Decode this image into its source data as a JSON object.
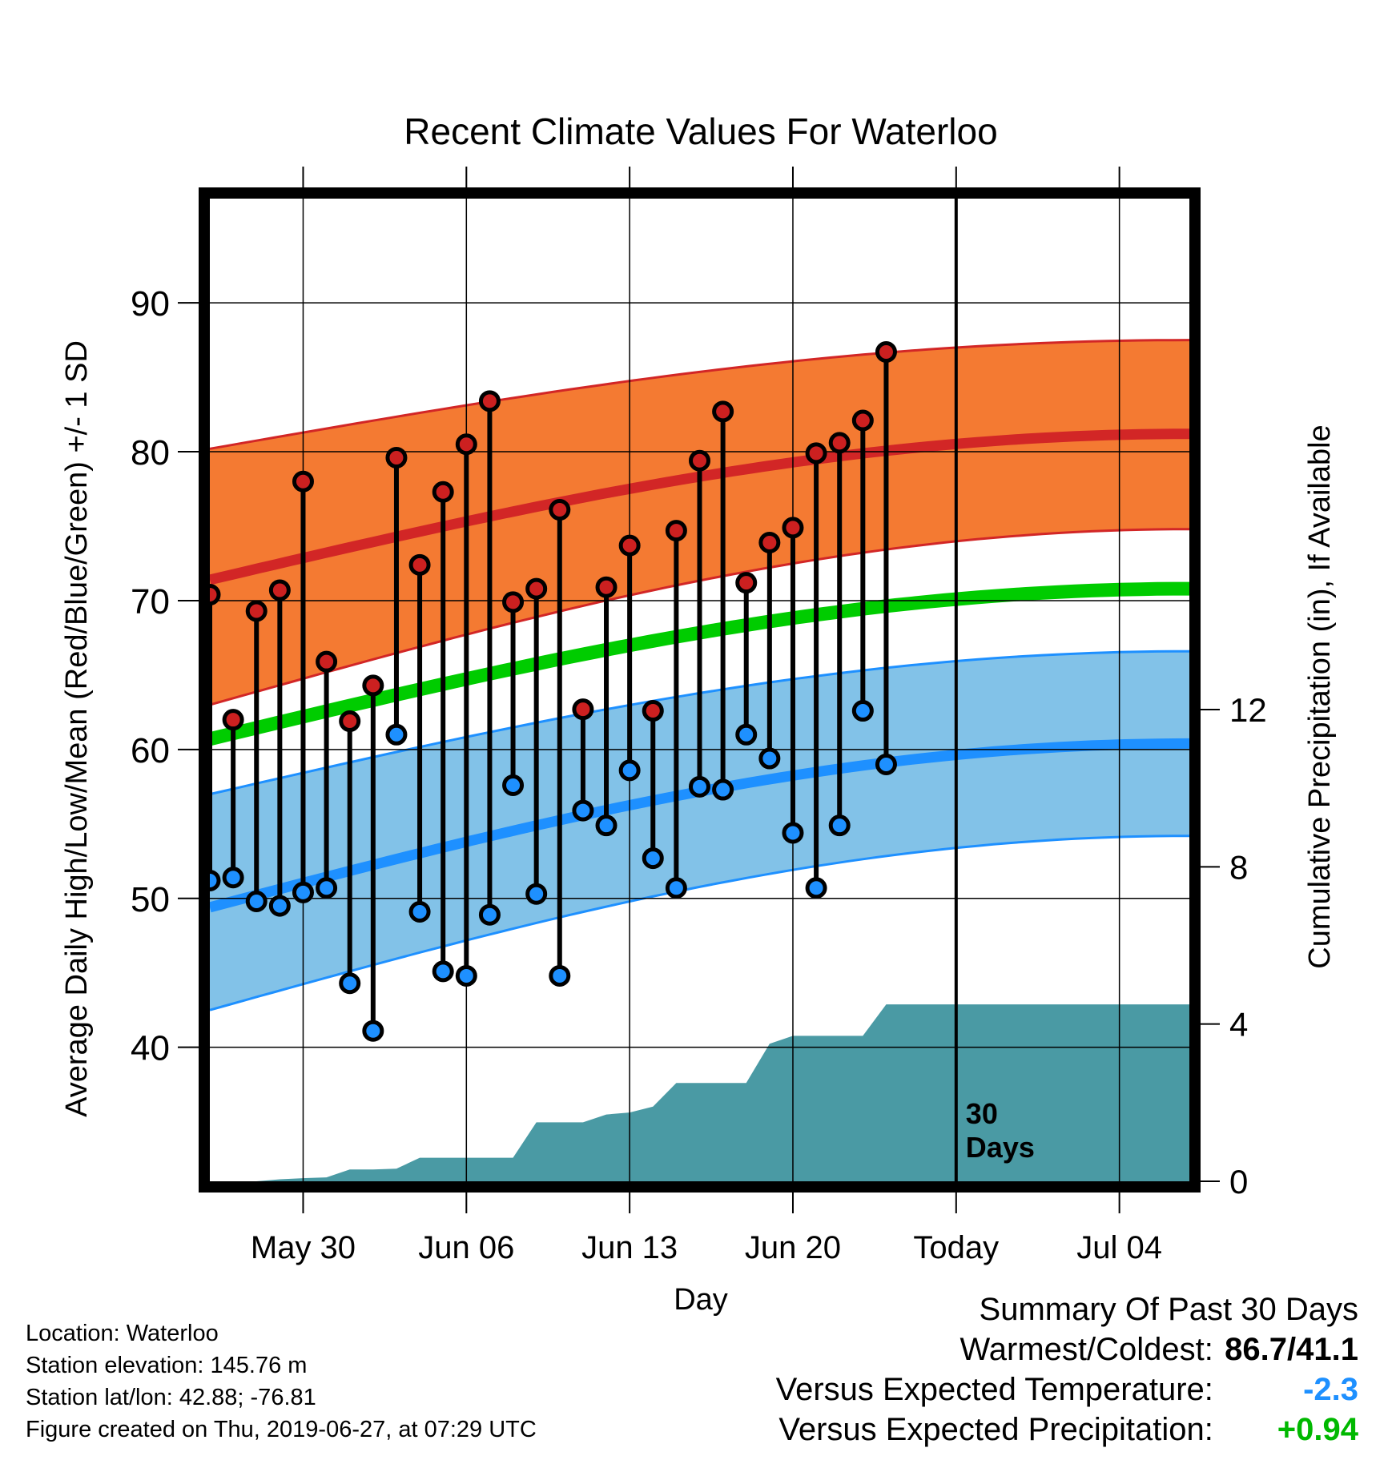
{
  "chart_data": {
    "type": "line",
    "title": "Recent Climate Values For Waterloo",
    "xlabel": "Day",
    "ylabel": "Average Daily High/Low/Mean (Red/Blue/Green) +/- 1 SD",
    "y2label": "Cumulative Precipitation (in), If Available",
    "x_ticks": [
      "May 30",
      "Jun 06",
      "Jun 13",
      "Jun 20",
      "Today",
      "Jul 04"
    ],
    "x_tick_days": [
      4,
      11,
      18,
      25,
      32,
      39
    ],
    "x_range_days": [
      0,
      42
    ],
    "y_ticks": [
      40,
      50,
      60,
      70,
      80,
      90
    ],
    "ylim": [
      31,
      97
    ],
    "y2_ticks": [
      0,
      4,
      8,
      12
    ],
    "y2lim": [
      0,
      25
    ],
    "today_marker_day": 32,
    "today_label": "30\nDays",
    "grid": true,
    "normal_high": {
      "mean": [
        71.4,
        81.2
      ],
      "lower": [
        63.0,
        74.8
      ],
      "upper": [
        80.2,
        87.5
      ]
    },
    "normal_mean": [
      60.7,
      70.8
    ],
    "normal_low": {
      "mean": [
        49.4,
        60.4
      ],
      "lower": [
        42.5,
        54.2
      ],
      "upper": [
        57.0,
        66.6
      ]
    },
    "colors": {
      "high_band": "#f47a32",
      "high_line": "#d22626",
      "mean_line": "#00cc00",
      "low_band": "#82c2e8",
      "low_line": "#1e90ff",
      "precip": "#4a9aa4",
      "high_marker": "#cc2020",
      "low_marker": "#1e90ff"
    },
    "observations": {
      "dates": [
        "May 27",
        "May 28",
        "May 29",
        "May 30",
        "May 31",
        "Jun 01",
        "Jun 02",
        "Jun 03",
        "Jun 04",
        "Jun 05",
        "Jun 06",
        "Jun 07",
        "Jun 08",
        "Jun 09",
        "Jun 10",
        "Jun 11",
        "Jun 12",
        "Jun 13",
        "Jun 14",
        "Jun 15",
        "Jun 16",
        "Jun 17",
        "Jun 18",
        "Jun 19",
        "Jun 20",
        "Jun 21",
        "Jun 22",
        "Jun 23",
        "Jun 24",
        "Jun 25",
        "Jun 26"
      ],
      "high": [
        70.4,
        62.0,
        69.3,
        70.7,
        78.0,
        65.9,
        61.9,
        64.3,
        79.6,
        72.4,
        77.3,
        80.5,
        83.4,
        69.9,
        70.8,
        76.1,
        62.7,
        70.9,
        73.7,
        62.6,
        74.7,
        79.4,
        82.7,
        71.2,
        73.9,
        74.9,
        79.9,
        80.6,
        82.1,
        86.7,
        null
      ],
      "low": [
        51.2,
        51.4,
        49.8,
        49.5,
        50.4,
        50.7,
        44.3,
        41.1,
        61.0,
        49.1,
        45.1,
        44.8,
        48.9,
        57.6,
        50.3,
        44.8,
        55.9,
        54.9,
        58.6,
        52.7,
        50.7,
        57.5,
        57.3,
        61.0,
        59.4,
        54.4,
        50.7,
        54.9,
        62.6,
        59.0,
        null
      ]
    },
    "precip_cumulative": {
      "days": [
        0,
        1,
        2,
        3,
        4,
        5,
        6,
        7,
        8,
        9,
        10,
        11,
        12,
        13,
        14,
        15,
        16,
        17,
        18,
        19,
        20,
        21,
        22,
        23,
        24,
        25,
        26,
        27,
        28,
        29,
        30,
        31,
        32,
        42
      ],
      "values": [
        0,
        0,
        0,
        0.05,
        0.08,
        0.1,
        0.3,
        0.3,
        0.32,
        0.6,
        0.6,
        0.6,
        0.6,
        0.6,
        1.5,
        1.5,
        1.5,
        1.7,
        1.75,
        1.9,
        2.5,
        2.5,
        2.5,
        2.5,
        3.5,
        3.7,
        3.7,
        3.7,
        3.7,
        4.5,
        4.5,
        4.5,
        4.5,
        4.5
      ]
    }
  },
  "info": {
    "location": "Location: Waterloo",
    "elevation": "Station elevation: 145.76 m",
    "latlon": "Station lat/lon: 42.88; -76.81",
    "created": "Figure created on Thu, 2019-06-27, at 07:29 UTC"
  },
  "summary": {
    "title": "Summary Of Past 30 Days",
    "warm_label": "Warmest/Coldest:",
    "warm_value": "86.7/41.1",
    "temp_label": "Versus Expected Temperature:",
    "temp_value": "-2.3",
    "temp_color": "#1e90ff",
    "precip_label": "Versus Expected Precipitation:",
    "precip_value": "+0.94",
    "precip_color": "#00b800"
  }
}
